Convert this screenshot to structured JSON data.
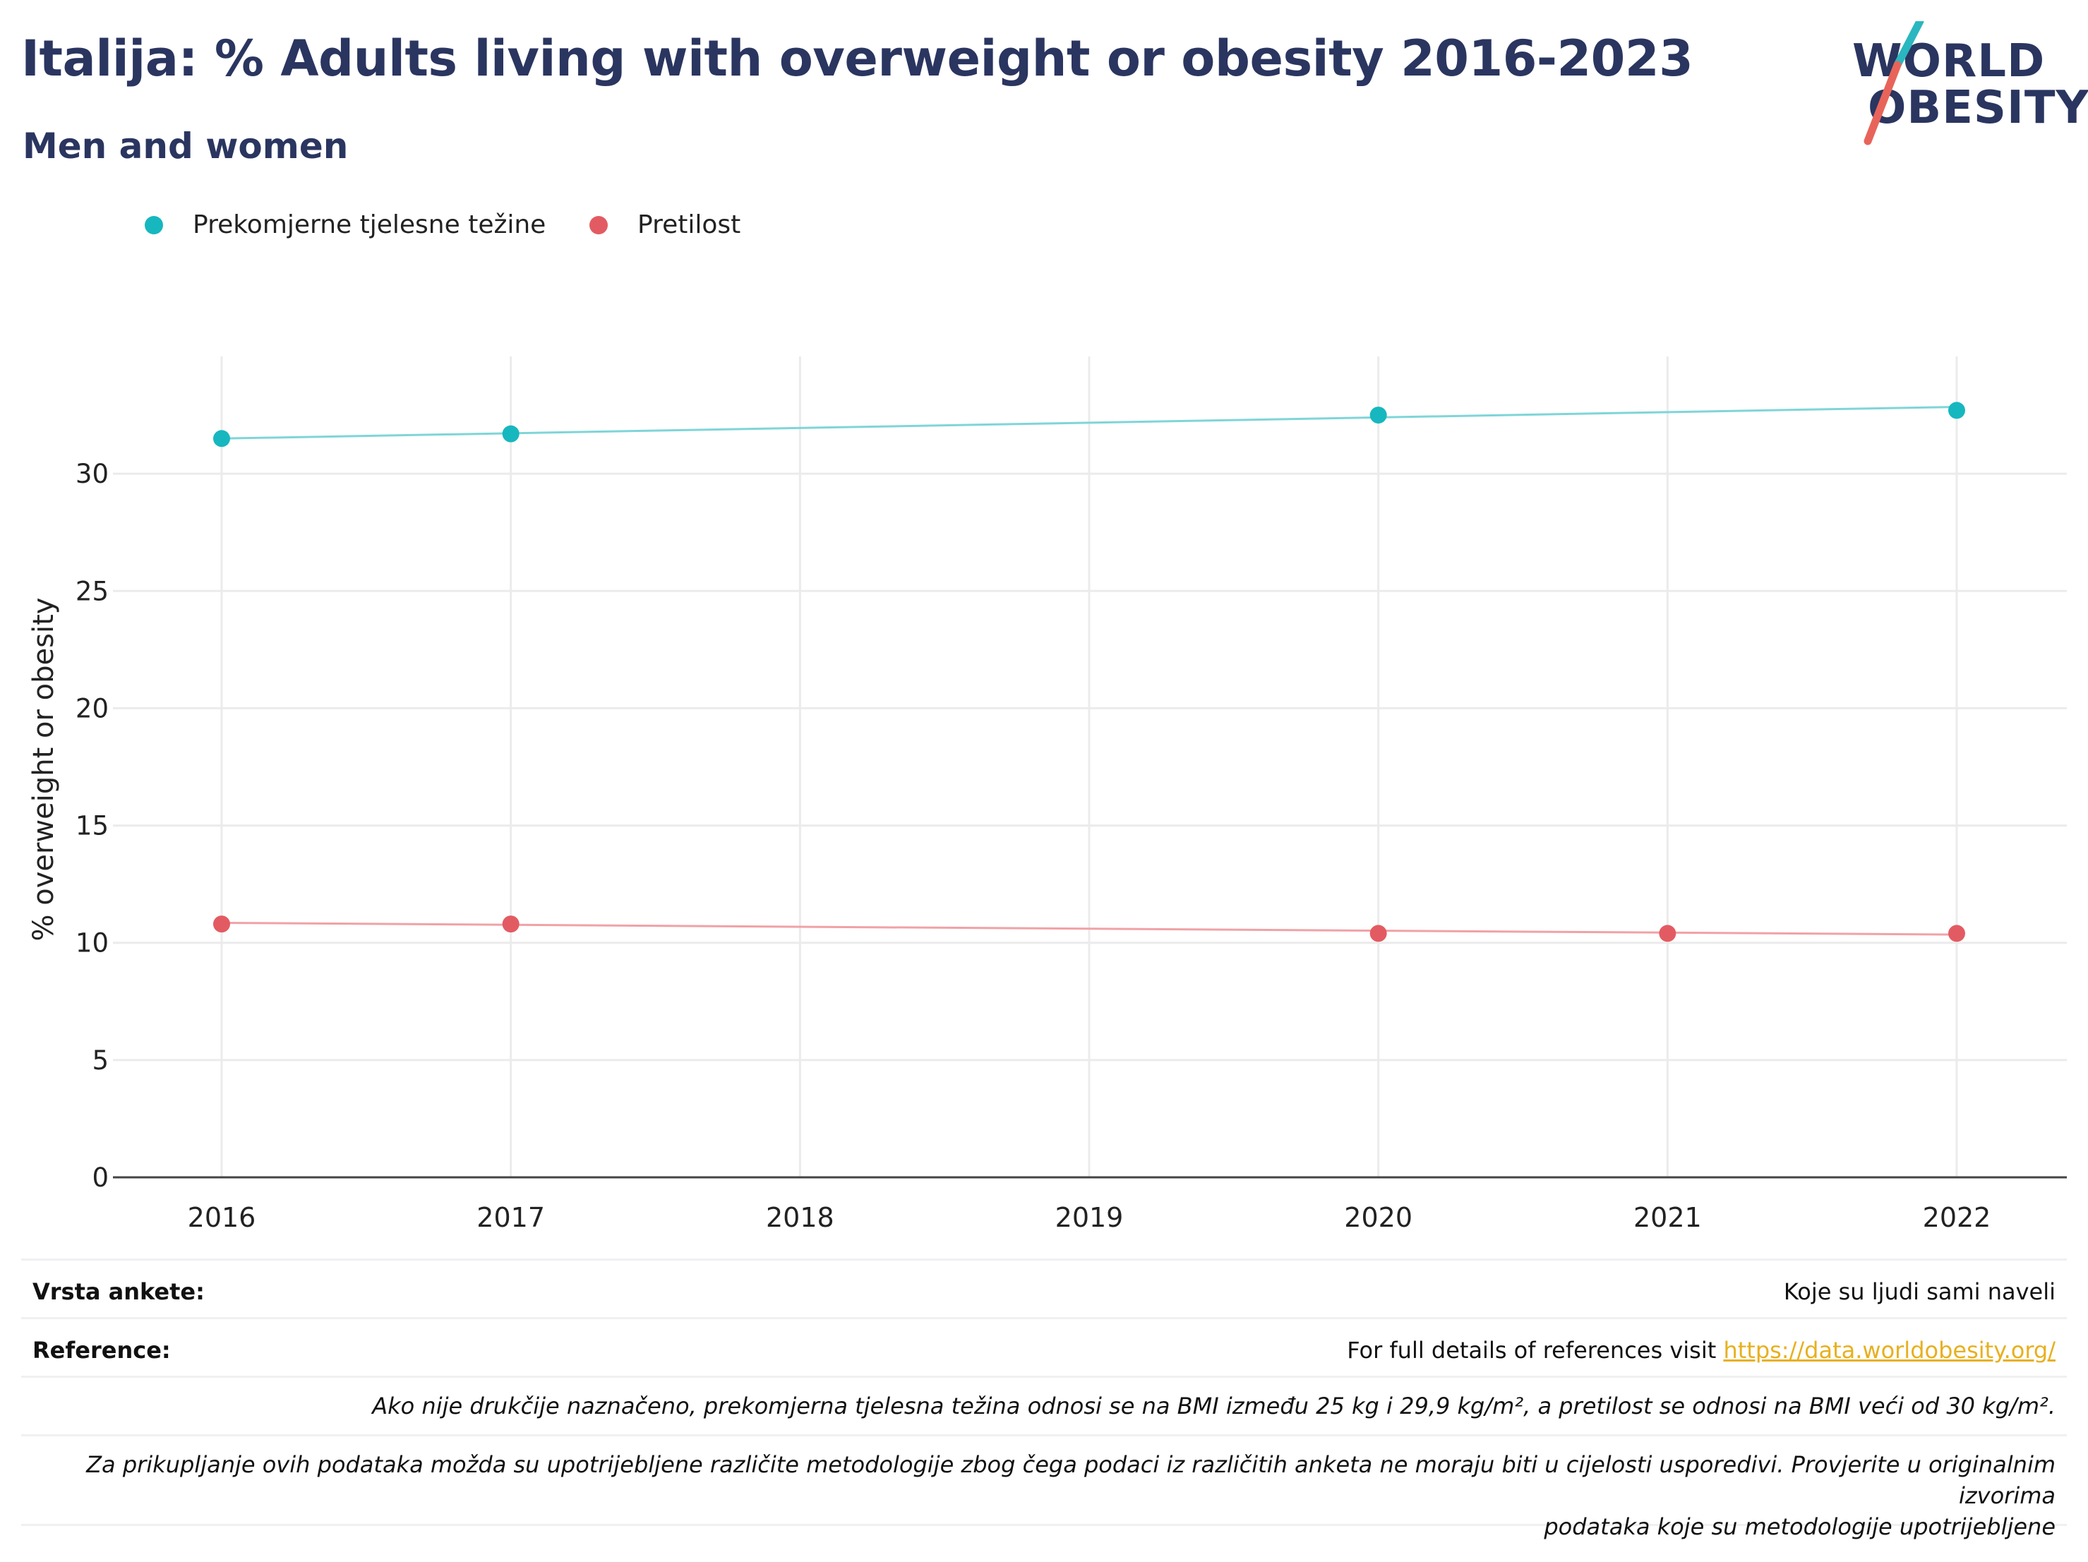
{
  "header": {
    "title": "Italija: % Adults living with overweight or obesity 2016-2023",
    "subtitle": "Men and women"
  },
  "logo": {
    "line1": "WORLD",
    "line2": "OBESITY",
    "accent_teal": "#2ab7bf",
    "accent_red": "#e8645a"
  },
  "colors": {
    "overweight": "#17b7bf",
    "obesity": "#e35b62",
    "overweight_line": "#7fd5d8",
    "obesity_line": "#f0a2a6",
    "text_dark": "#2a3560",
    "link": "#e7b020"
  },
  "chart_data": {
    "type": "line",
    "x": [
      2016,
      2017,
      2018,
      2019,
      2020,
      2021,
      2022
    ],
    "ylabel": "% overweight or obesity",
    "xlabel": "",
    "ylim": [
      0,
      35
    ],
    "yticks": [
      0,
      5,
      10,
      15,
      20,
      25,
      30
    ],
    "xticks": [
      "2016",
      "2017",
      "2018",
      "2019",
      "2020",
      "2021",
      "2022"
    ],
    "grid": true,
    "legend_placement": "top-left",
    "series": [
      {
        "name": "Prekomjerne tjelesne težine",
        "color": "#17b7bf",
        "points": [
          [
            2016,
            31.5
          ],
          [
            2017,
            31.7
          ],
          [
            2020,
            32.5
          ],
          [
            2022,
            32.7
          ]
        ],
        "trend": [
          [
            2016,
            31.5
          ],
          [
            2022,
            32.85
          ]
        ]
      },
      {
        "name": "Pretilost",
        "color": "#e35b62",
        "points": [
          [
            2016,
            10.8
          ],
          [
            2017,
            10.8
          ],
          [
            2020,
            10.4
          ],
          [
            2021,
            10.4
          ],
          [
            2022,
            10.4
          ]
        ],
        "trend": [
          [
            2016,
            10.85
          ],
          [
            2022,
            10.35
          ]
        ]
      }
    ]
  },
  "info": {
    "survey_label": "Vrsta ankete:",
    "survey_value": "Koje su ljudi sami naveli",
    "reference_label": "Reference:",
    "reference_text": "For full details of references visit ",
    "reference_link": "https://data.worldobesity.org/",
    "note1": "Ako nije drukčije naznačeno, prekomjerna tjelesna težina odnosi se na BMI između 25 kg i 29,9 kg/m², a pretilost se odnosi na BMI veći od 30 kg/m².",
    "note2_line1": "Za prikupljanje ovih podataka možda su upotrijebljene različite metodologije zbog čega podaci iz različitih anketa ne moraju biti u cijelosti usporedivi. Provjerite u originalnim izvorima",
    "note2_line2": "podataka koje su metodologije upotrijebljene"
  }
}
